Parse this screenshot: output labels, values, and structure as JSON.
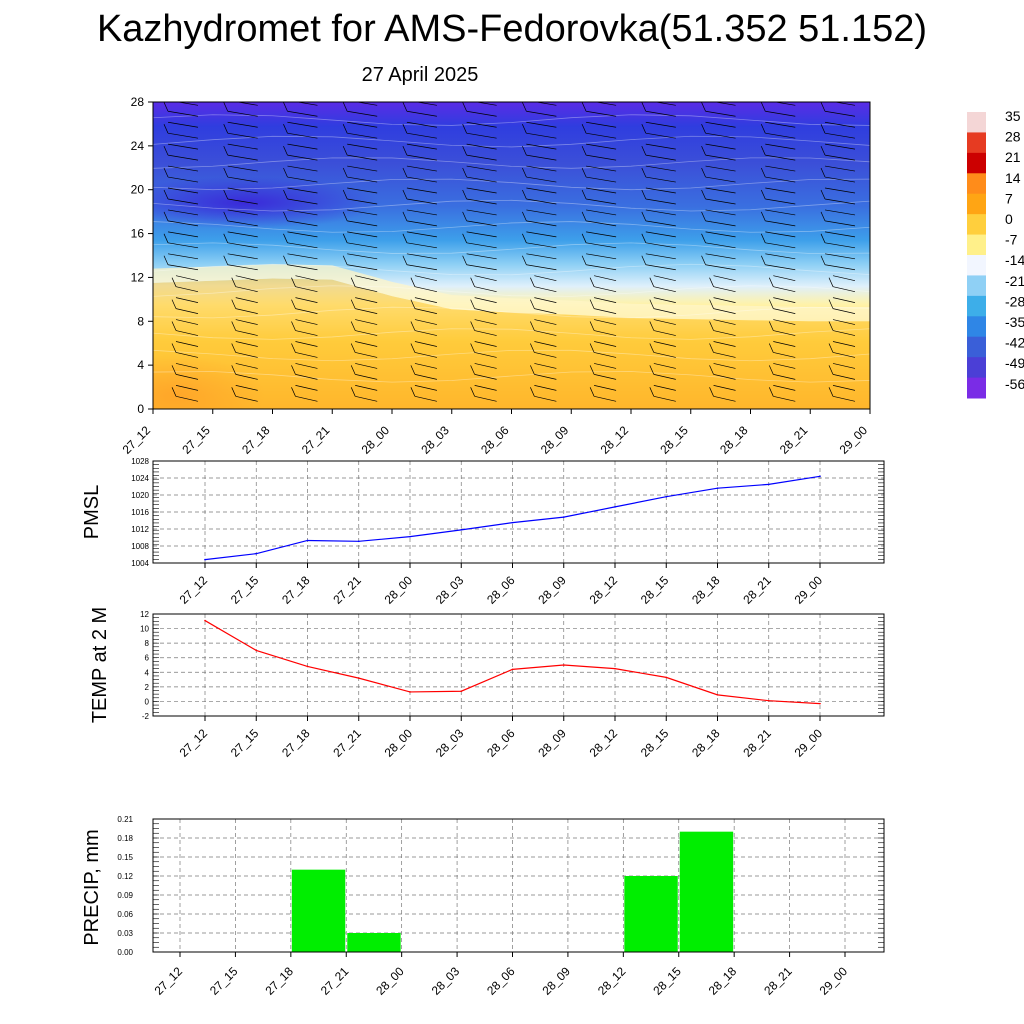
{
  "title": "Kazhydromet for AMS-Fedorovka(51.352 51.152)",
  "subtitle": "27 April 2025",
  "chart_data": [
    {
      "type": "heatmap",
      "name": "cross-section",
      "x": [
        "27_12",
        "27_15",
        "27_18",
        "27_21",
        "28_00",
        "28_03",
        "28_06",
        "28_09",
        "28_12",
        "28_15",
        "28_18",
        "28_21",
        "29_00"
      ],
      "y_ticks": [
        "0",
        "4",
        "8",
        "12",
        "16",
        "20",
        "24",
        "28"
      ],
      "ylim": [
        0,
        28
      ],
      "freezing_level_y": [
        11.5,
        11.7,
        11.9,
        11.8,
        10.3,
        9.1,
        8.8,
        8.6,
        8.3,
        8.2,
        8.1,
        8.0,
        8.0
      ],
      "colorbar_labels": [
        "35",
        "28",
        "21",
        "14",
        "7",
        "0",
        "-7",
        "-14",
        "-21",
        "-28",
        "-35",
        "-42",
        "-49",
        "-56"
      ],
      "colorbar_colors": [
        "#f4d6d6",
        "#e63b22",
        "#cc0000",
        "#ff8c1a",
        "#ffa514",
        "#ffcf3d",
        "#fff08a",
        "#f2f6ff",
        "#8fd0f5",
        "#3daee9",
        "#2f86e6",
        "#3a5fd8",
        "#4b3fd6",
        "#7a2ce6"
      ]
    },
    {
      "type": "line",
      "ylabel": "PMSL",
      "x": [
        "27_12",
        "27_15",
        "27_18",
        "27_21",
        "28_00",
        "28_03",
        "28_06",
        "28_09",
        "28_12",
        "28_15",
        "28_18",
        "28_21",
        "29_00"
      ],
      "y": [
        1004.8,
        1006.2,
        1009.3,
        1009.1,
        1010.2,
        1011.8,
        1013.5,
        1014.8,
        1017.2,
        1019.6,
        1021.6,
        1022.5,
        1024.4
      ],
      "y_ticks": [
        "1004",
        "1008",
        "1012",
        "1016",
        "1020",
        "1024",
        "1028"
      ],
      "ylim": [
        1004,
        1028
      ],
      "color": "#0000ff",
      "grid": true
    },
    {
      "type": "line",
      "ylabel": "TEMP at 2 M",
      "x": [
        "27_12",
        "27_15",
        "27_18",
        "27_21",
        "28_00",
        "28_03",
        "28_06",
        "28_09",
        "28_12",
        "28_15",
        "28_18",
        "28_21",
        "29_00"
      ],
      "y": [
        11.1,
        7.0,
        4.8,
        3.2,
        1.3,
        1.4,
        4.4,
        5.0,
        4.5,
        3.3,
        0.9,
        0.1,
        -0.3
      ],
      "y_ticks": [
        "-2",
        "0",
        "2",
        "4",
        "6",
        "8",
        "10",
        "12"
      ],
      "ylim": [
        -2,
        12
      ],
      "color": "#ff0000",
      "grid": true
    },
    {
      "type": "bar",
      "ylabel": "PRECIP, mm",
      "categories": [
        "27_12",
        "27_15",
        "27_18",
        "27_21",
        "28_00",
        "28_03",
        "28_06",
        "28_09",
        "28_12",
        "28_15",
        "28_18",
        "28_21",
        "29_00"
      ],
      "values": [
        0,
        0,
        0.13,
        0.03,
        0,
        0,
        0,
        0,
        0.12,
        0.19,
        0,
        0,
        0
      ],
      "y_ticks": [
        "0.00",
        "0.03",
        "0.06",
        "0.09",
        "0.12",
        "0.15",
        "0.18",
        "0.21"
      ],
      "ylim": [
        0,
        0.21
      ],
      "color": "#00ee00",
      "grid": true
    }
  ]
}
